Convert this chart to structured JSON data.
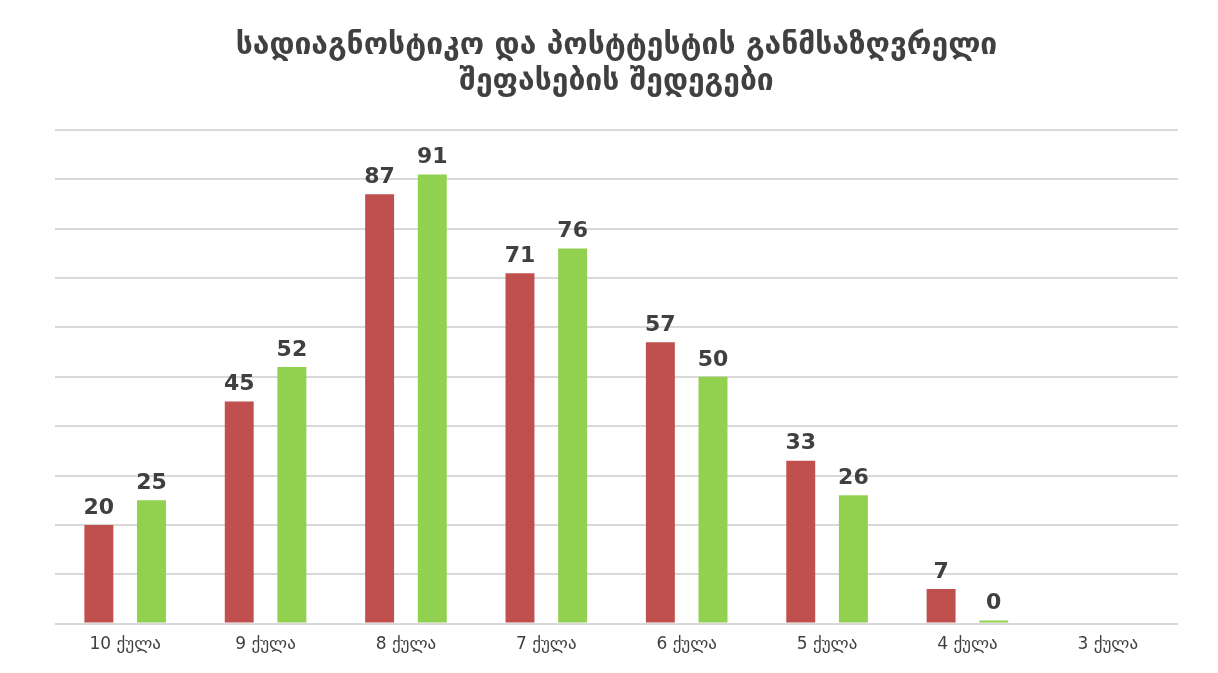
{
  "chart_data": {
    "type": "bar",
    "title": "სადიაგნოსტიკო და პოსტტესტის განმსაზღვრელი შეფასების შედეგები",
    "categories": [
      "10 ქულა",
      "9 ქულა",
      "8 ქულა",
      "7 ქულა",
      "6 ქულა",
      "5 ქულა",
      "4 ქულა",
      "3 ქულა"
    ],
    "series": [
      {
        "color": "#c0504d",
        "values": [
          20,
          45,
          87,
          71,
          57,
          33,
          7,
          null
        ]
      },
      {
        "color": "#92d050",
        "values": [
          25,
          52,
          91,
          76,
          50,
          26,
          0,
          null
        ]
      }
    ],
    "ylim": [
      0,
      100
    ],
    "yticks": [
      {
        "value": 0,
        "label": null
      },
      {
        "value": 10,
        "label": null
      },
      {
        "value": 20,
        "label": null
      },
      {
        "value": 30,
        "label": null
      },
      {
        "value": 40,
        "label": null
      },
      {
        "value": 50,
        "label": null
      },
      {
        "value": 60,
        "label": null
      },
      {
        "value": 70,
        "label": null
      },
      {
        "value": 80,
        "label": null
      },
      {
        "value": 90,
        "label": null
      },
      {
        "value": 100,
        "label": null
      }
    ],
    "tick_labels": "x",
    "grid": "y",
    "data_labels": true,
    "legend": false
  }
}
